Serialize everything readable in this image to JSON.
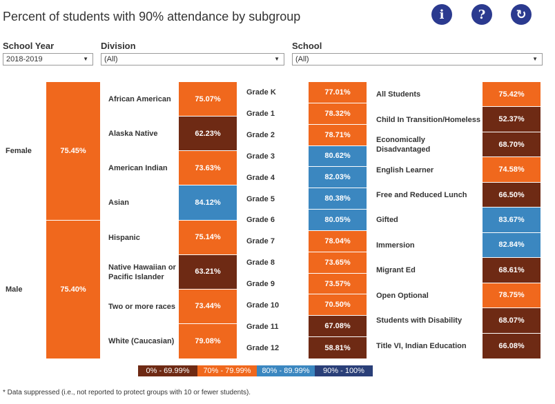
{
  "title": "Percent of students with 90% attendance by subgroup",
  "toolbar": {
    "info_label": "i",
    "help_label": "?",
    "refresh_label": "↻"
  },
  "filters": {
    "school_year": {
      "label": "School Year",
      "value": "2018-2019"
    },
    "division": {
      "label": "Division",
      "value": "(All)"
    },
    "school": {
      "label": "School",
      "value": "(All)"
    }
  },
  "colors": {
    "band_0_69": "#6e2a14",
    "band_70_79": "#f0681d",
    "band_80_89": "#3b87c0",
    "band_90_100": "#2a3f78"
  },
  "chart_data": [
    {
      "type": "table",
      "name": "Gender",
      "categories": [
        "Female",
        "Male"
      ],
      "values": [
        75.45,
        75.4
      ],
      "labels": [
        "75.45%",
        "75.40%"
      ]
    },
    {
      "type": "table",
      "name": "Race/Ethnicity",
      "categories": [
        "African American",
        "Alaska Native",
        "American Indian",
        "Asian",
        "Hispanic",
        "Native Hawaiian or Pacific Islander",
        "Two or more races",
        "White (Caucasian)"
      ],
      "values": [
        75.07,
        62.23,
        73.63,
        84.12,
        75.14,
        63.21,
        73.44,
        79.08
      ],
      "labels": [
        "75.07%",
        "62.23%",
        "73.63%",
        "84.12%",
        "75.14%",
        "63.21%",
        "73.44%",
        "79.08%"
      ]
    },
    {
      "type": "table",
      "name": "Grade",
      "categories": [
        "Grade K",
        "Grade 1",
        "Grade 2",
        "Grade 3",
        "Grade 4",
        "Grade 5",
        "Grade 6",
        "Grade 7",
        "Grade 8",
        "Grade 9",
        "Grade 10",
        "Grade 11",
        "Grade 12"
      ],
      "values": [
        77.01,
        78.32,
        78.71,
        80.62,
        82.03,
        80.38,
        80.05,
        78.04,
        73.65,
        73.57,
        70.5,
        67.08,
        58.81
      ],
      "labels": [
        "77.01%",
        "78.32%",
        "78.71%",
        "80.62%",
        "82.03%",
        "80.38%",
        "80.05%",
        "78.04%",
        "73.65%",
        "73.57%",
        "70.50%",
        "67.08%",
        "58.81%"
      ]
    },
    {
      "type": "table",
      "name": "Program",
      "categories": [
        "All Students",
        "Child In Transition/Homeless",
        "Economically Disadvantaged",
        "English Learner",
        "Free and Reduced Lunch",
        "Gifted",
        "Immersion",
        "Migrant Ed",
        "Open Optional",
        "Students with Disability",
        "Title VI, Indian Education"
      ],
      "values": [
        75.42,
        52.37,
        68.7,
        74.58,
        66.5,
        83.67,
        82.84,
        68.61,
        78.75,
        68.07,
        66.08
      ],
      "labels": [
        "75.42%",
        "52.37%",
        "68.70%",
        "74.58%",
        "66.50%",
        "83.67%",
        "82.84%",
        "68.61%",
        "78.75%",
        "68.07%",
        "66.08%"
      ]
    }
  ],
  "legend": [
    {
      "label": "0% - 69.99%",
      "color_key": "band_0_69"
    },
    {
      "label": "70% - 79.99%",
      "color_key": "band_70_79"
    },
    {
      "label": "80% - 89.99%",
      "color_key": "band_80_89"
    },
    {
      "label": "90% - 100%",
      "color_key": "band_90_100"
    }
  ],
  "footnote": "* Data suppressed (i.e., not reported to protect groups with 10 or fewer students)."
}
